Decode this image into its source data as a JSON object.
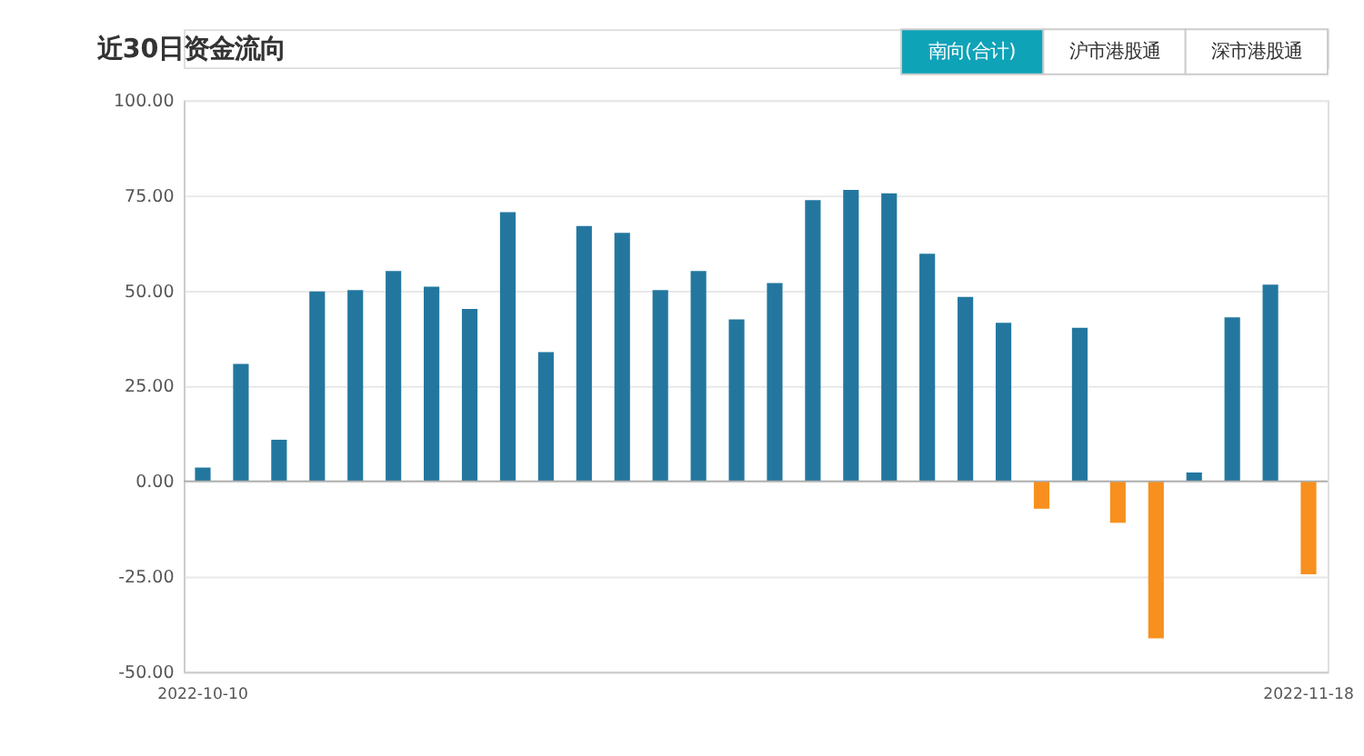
{
  "chart_data": {
    "type": "bar",
    "title": "近30日资金流向",
    "annotations": [
      "南向(合计)",
      "沪市港股通",
      "深市港股通"
    ],
    "categories": [
      "2022-10-10",
      null,
      null,
      null,
      null,
      null,
      null,
      null,
      null,
      null,
      null,
      null,
      null,
      null,
      null,
      null,
      null,
      null,
      null,
      null,
      null,
      null,
      null,
      null,
      null,
      null,
      null,
      null,
      null,
      "2022-11-18"
    ],
    "values": [
      3.6,
      30.8,
      10.9,
      49.8,
      50.2,
      55.2,
      51.1,
      45.2,
      70.6,
      33.9,
      67.0,
      65.2,
      50.2,
      55.2,
      42.5,
      52.0,
      73.8,
      76.5,
      75.6,
      59.7,
      48.4,
      41.6,
      -7.2,
      40.3,
      -10.9,
      -41.2,
      2.3,
      43.0,
      51.6,
      -24.4
    ],
    "colors": [
      "#23779f",
      "#23779f",
      "#23779f",
      "#23779f",
      "#23779f",
      "#23779f",
      "#23779f",
      "#23779f",
      "#23779f",
      "#23779f",
      "#23779f",
      "#23779f",
      "#23779f",
      "#23779f",
      "#23779f",
      "#23779f",
      "#23779f",
      "#23779f",
      "#23779f",
      "#23779f",
      "#23779f",
      "#23779f",
      "#f7901e",
      "#23779f",
      "#f7901e",
      "#f7901e",
      "#23779f",
      "#23779f",
      "#23779f",
      "#f7901e"
    ],
    "ylim": [
      -50,
      100
    ],
    "yticks": [
      {
        "value": -50,
        "label": "-50.00"
      },
      {
        "value": -25,
        "label": "-25.00"
      },
      {
        "value": 0,
        "label": "0.00"
      },
      {
        "value": 25,
        "label": "25.00"
      },
      {
        "value": 50,
        "label": "50.00"
      },
      {
        "value": 75,
        "label": "75.00"
      },
      {
        "value": 100,
        "label": "100.00"
      }
    ],
    "grid": "y"
  }
}
